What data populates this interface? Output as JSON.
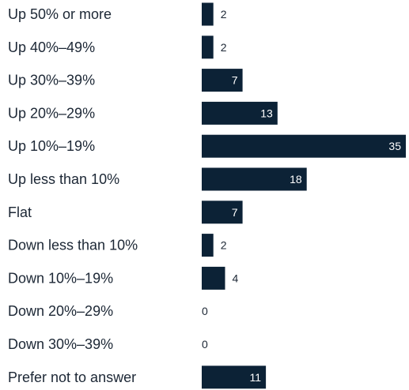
{
  "colors": {
    "bar": "#0c2236",
    "label": "#1c2735",
    "value_inside": "#ffffff",
    "value_outside": "#1c2735"
  },
  "chart_data": {
    "type": "bar",
    "orientation": "horizontal",
    "categories": [
      "Up 50% or more",
      "Up 40%–49%",
      "Up 30%–39%",
      "Up 20%–29%",
      "Up 10%–19%",
      "Up less than 10%",
      "Flat",
      "Down less than 10%",
      "Down 10%–19%",
      "Down 20%–29%",
      "Down 30%–39%",
      "Prefer not to answer"
    ],
    "values": [
      2,
      2,
      7,
      13,
      35,
      18,
      7,
      2,
      4,
      0,
      0,
      11
    ],
    "value_labels": [
      "2",
      "2",
      "7",
      "13",
      "35",
      "18",
      "7",
      "2",
      "4",
      "0",
      "0",
      "11"
    ],
    "xlim": [
      0,
      35
    ],
    "grid": false,
    "legend": "none",
    "title": "",
    "xlabel": "",
    "ylabel": ""
  }
}
